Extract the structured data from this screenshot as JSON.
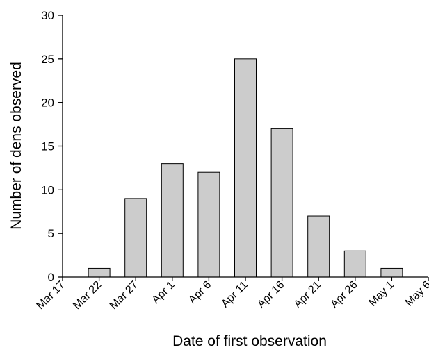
{
  "chart_data": {
    "type": "bar",
    "xlabel": "Date of first observation",
    "ylabel": "Number of dens observed",
    "ylim": [
      0,
      30
    ],
    "yticks": [
      0,
      5,
      10,
      15,
      20,
      25,
      30
    ],
    "xtick_labels": [
      "Mar 17",
      "Mar 22",
      "Mar 27",
      "Apr 1",
      "Apr 6",
      "Apr 11",
      "Apr 16",
      "Apr 21",
      "Apr 26",
      "May 1",
      "May 6"
    ],
    "categories": [
      "Mar 22",
      "Mar 27",
      "Apr 1",
      "Apr 6",
      "Apr 11",
      "Apr 16",
      "Apr 21",
      "Apr 26",
      "May 1"
    ],
    "values": [
      1,
      9,
      13,
      12,
      25,
      17,
      7,
      3,
      1
    ],
    "bar_color": "#cccccc",
    "grid": false
  }
}
